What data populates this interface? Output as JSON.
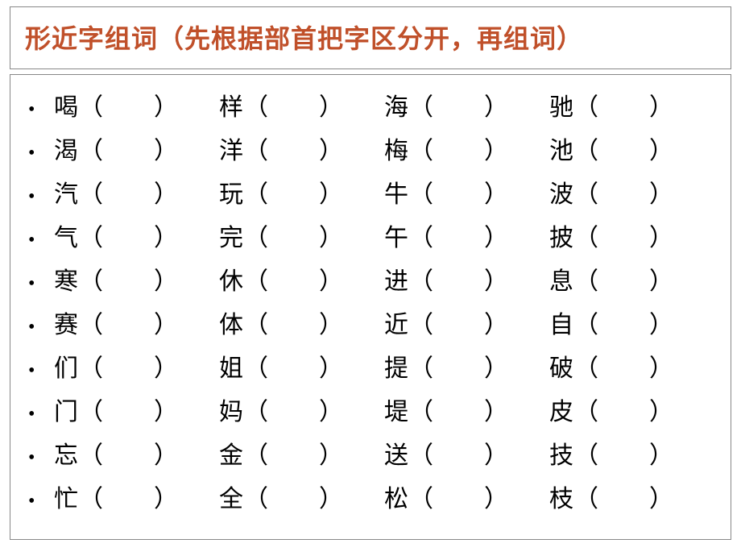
{
  "title": "形近字组词（先根据部首把字区分开，再组词）",
  "colors": {
    "title_color": "#c0502a",
    "border_color": "#888888",
    "text_color": "#000000",
    "background": "#ffffff"
  },
  "typography": {
    "title_fontsize": 32,
    "body_fontsize": 30,
    "font_family": "SimSun"
  },
  "bullet": "•",
  "open_paren": "（",
  "close_paren": "）",
  "rows": [
    {
      "c1": "喝",
      "c2": "样",
      "c3": "海",
      "c4": "驰"
    },
    {
      "c1": "渴",
      "c2": "洋",
      "c3": "梅",
      "c4": "池"
    },
    {
      "c1": "汽",
      "c2": "玩",
      "c3": "牛",
      "c4": "波"
    },
    {
      "c1": "气",
      "c2": "完",
      "c3": "午",
      "c4": "披"
    },
    {
      "c1": "寒",
      "c2": "休",
      "c3": "进",
      "c4": "息"
    },
    {
      "c1": "赛",
      "c2": "体",
      "c3": "近",
      "c4": "自"
    },
    {
      "c1": "们",
      "c2": "姐",
      "c3": "提",
      "c4": "破"
    },
    {
      "c1": "门",
      "c2": "妈",
      "c3": "堤",
      "c4": "皮"
    },
    {
      "c1": "忘",
      "c2": "金",
      "c3": "送",
      "c4": "技"
    },
    {
      "c1": "忙",
      "c2": "全",
      "c3": "松",
      "c4": "枝"
    }
  ],
  "cell_template": {
    "spacing_after_char": "　",
    "blank_fill": "　　"
  }
}
